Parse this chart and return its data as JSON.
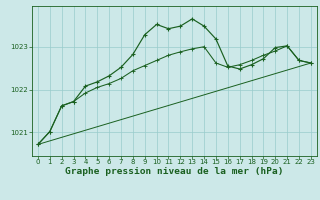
{
  "title": "Graphe pression niveau de la mer (hPa)",
  "bg_color": "#cce8e8",
  "grid_color": "#99cccc",
  "line_color": "#1a6020",
  "xlim": [
    -0.5,
    23.5
  ],
  "ylim": [
    1020.45,
    1023.95
  ],
  "yticks": [
    1021,
    1022,
    1023
  ],
  "xticks": [
    0,
    1,
    2,
    3,
    4,
    5,
    6,
    7,
    8,
    9,
    10,
    11,
    12,
    13,
    14,
    15,
    16,
    17,
    18,
    19,
    20,
    21,
    22,
    23
  ],
  "jagged_y": [
    1020.72,
    1021.02,
    1021.62,
    1021.72,
    1022.08,
    1022.18,
    1022.32,
    1022.52,
    1022.82,
    1023.28,
    1023.52,
    1023.42,
    1023.48,
    1023.65,
    1023.48,
    1023.18,
    1022.55,
    1022.48,
    1022.58,
    1022.72,
    1022.98,
    1023.02,
    1022.68,
    1022.62
  ],
  "smooth_y": [
    1020.72,
    1021.02,
    1021.62,
    1021.72,
    1021.92,
    1022.05,
    1022.14,
    1022.26,
    1022.44,
    1022.56,
    1022.68,
    1022.8,
    1022.88,
    1022.95,
    1023.0,
    1022.62,
    1022.52,
    1022.58,
    1022.68,
    1022.8,
    1022.9,
    1023.02,
    1022.68,
    1022.62
  ],
  "trend_x": [
    0,
    23
  ],
  "trend_y": [
    1020.72,
    1022.62
  ],
  "tick_fontsize": 5.0,
  "title_fontsize": 6.8
}
